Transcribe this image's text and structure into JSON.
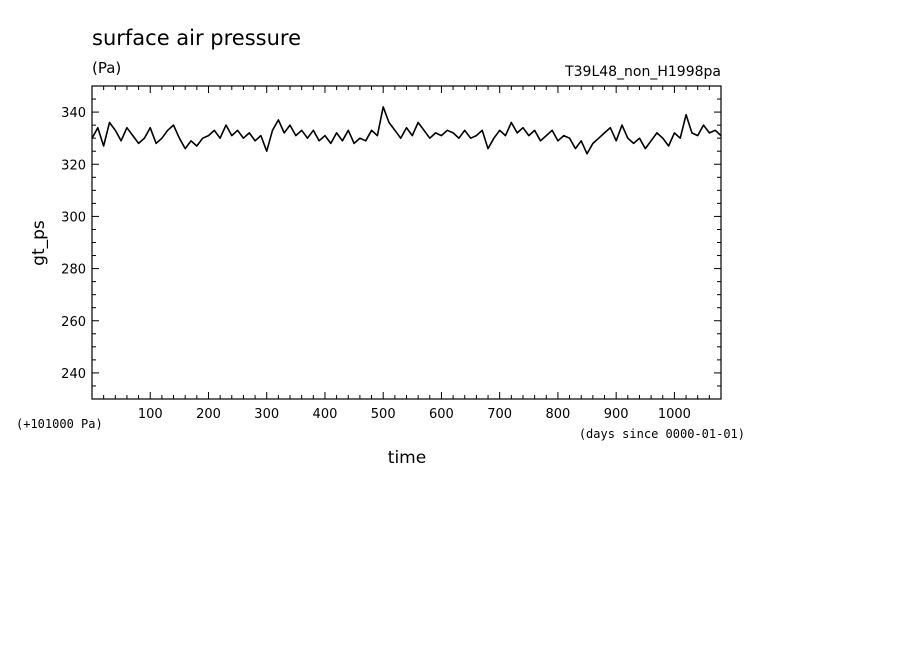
{
  "chart_data": {
    "type": "line",
    "title": "surface air pressure",
    "units": "(Pa)",
    "run_label": "T39L48_non_H1998pa",
    "xlabel": "time",
    "x_units": "(days since 0000-01-01)",
    "ylabel": "gt_ps",
    "y_offset_label": "(+101000 Pa)",
    "xlim": [
      0,
      1080
    ],
    "ylim": [
      230,
      350
    ],
    "x_ticks": [
      100,
      200,
      300,
      400,
      500,
      600,
      700,
      800,
      900,
      1000
    ],
    "y_ticks": [
      240,
      260,
      280,
      300,
      320,
      340
    ],
    "series": [
      {
        "color": "#000000",
        "x": [
          0,
          10,
          20,
          30,
          40,
          50,
          60,
          70,
          80,
          90,
          100,
          110,
          120,
          130,
          140,
          150,
          160,
          170,
          180,
          190,
          200,
          210,
          220,
          230,
          240,
          250,
          260,
          270,
          280,
          290,
          300,
          310,
          320,
          330,
          340,
          350,
          360,
          370,
          380,
          390,
          400,
          410,
          420,
          430,
          440,
          450,
          460,
          470,
          480,
          490,
          500,
          510,
          520,
          530,
          540,
          550,
          560,
          570,
          580,
          590,
          600,
          610,
          620,
          630,
          640,
          650,
          660,
          670,
          680,
          690,
          700,
          710,
          720,
          730,
          740,
          750,
          760,
          770,
          780,
          790,
          800,
          810,
          820,
          830,
          840,
          850,
          860,
          870,
          880,
          890,
          900,
          910,
          920,
          930,
          940,
          950,
          960,
          970,
          980,
          990,
          1000,
          1010,
          1020,
          1030,
          1040,
          1050,
          1060,
          1070,
          1080
        ],
        "y": [
          330,
          334,
          327,
          336,
          333,
          329,
          334,
          331,
          328,
          330,
          334,
          328,
          330,
          333,
          335,
          330,
          326,
          329,
          327,
          330,
          331,
          333,
          330,
          335,
          331,
          333,
          330,
          332,
          329,
          331,
          325,
          333,
          337,
          332,
          335,
          331,
          333,
          330,
          333,
          329,
          331,
          328,
          332,
          329,
          333,
          328,
          330,
          329,
          333,
          331,
          342,
          336,
          333,
          330,
          334,
          331,
          336,
          333,
          330,
          332,
          331,
          333,
          332,
          330,
          333,
          330,
          331,
          333,
          326,
          330,
          333,
          331,
          336,
          332,
          334,
          331,
          333,
          329,
          331,
          333,
          329,
          331,
          330,
          326,
          329,
          324,
          328,
          330,
          332,
          334,
          329,
          335,
          330,
          328,
          330,
          326,
          329,
          332,
          330,
          327,
          332,
          330,
          339,
          332,
          331,
          335,
          332,
          333,
          331
        ]
      }
    ],
    "grid": false,
    "legend": "none"
  }
}
